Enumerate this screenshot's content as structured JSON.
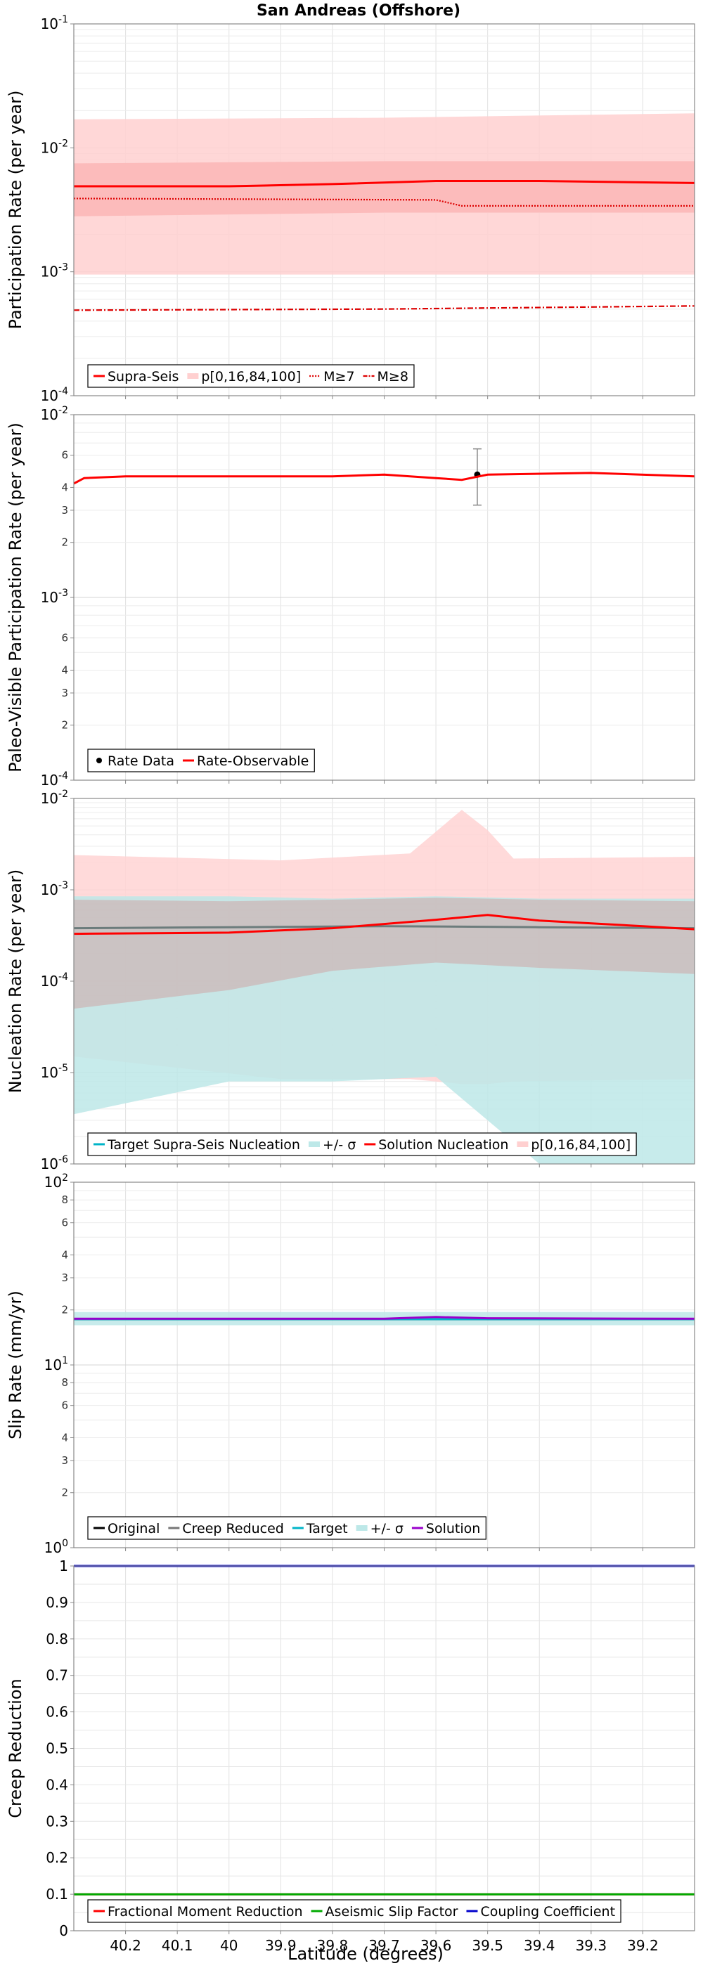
{
  "figure": {
    "title": "San Andreas (Offshore)",
    "xlabel": "Latitude (degrees)"
  },
  "chart_data": [
    {
      "id": "participation",
      "type": "line",
      "ylabel": "Participation Rate (per year)",
      "yscale": "log",
      "xlim": [
        40.3,
        39.1
      ],
      "ylim": [
        0.0001,
        0.1
      ],
      "grid": true,
      "legend_position": "bottom-left",
      "series": [
        {
          "name": "p[0,16,84,100]",
          "kind": "band",
          "color": "#ffd0d0",
          "x": [
            40.3,
            39.7,
            39.1
          ],
          "low": [
            0.00095,
            0.00095,
            0.00095
          ],
          "high": [
            0.017,
            0.0175,
            0.019
          ]
        },
        {
          "kind": "band",
          "color": "#fcb6b6",
          "x": [
            40.3,
            39.7,
            39.1
          ],
          "low": [
            0.0028,
            0.003,
            0.003
          ],
          "high": [
            0.0075,
            0.0078,
            0.0078
          ]
        },
        {
          "name": "Supra-Seis",
          "kind": "line",
          "color": "#ff0000",
          "x": [
            40.3,
            40.0,
            39.8,
            39.6,
            39.4,
            39.1
          ],
          "y": [
            0.0049,
            0.0049,
            0.0051,
            0.0054,
            0.0054,
            0.0052
          ]
        },
        {
          "name": "M≥7",
          "kind": "line",
          "style": "dotted",
          "color": "#dd0000",
          "x": [
            40.3,
            39.6,
            39.55,
            39.1
          ],
          "y": [
            0.0039,
            0.0038,
            0.0034,
            0.0034
          ]
        },
        {
          "name": "M≥8",
          "kind": "line",
          "style": "dashdot",
          "color": "#dd0000",
          "x": [
            40.3,
            39.7,
            39.1
          ],
          "y": [
            0.00049,
            0.0005,
            0.00053
          ]
        }
      ]
    },
    {
      "id": "paleo",
      "type": "line",
      "ylabel": "Paleo-Visible Participation Rate (per year)",
      "yscale": "log",
      "xlim": [
        40.3,
        39.1
      ],
      "ylim": [
        0.0001,
        0.01
      ],
      "grid": true,
      "legend_position": "bottom-left",
      "series": [
        {
          "name": "Rate Data",
          "kind": "points",
          "color": "#000000",
          "x": [
            39.52
          ],
          "y": [
            0.0047
          ],
          "low": [
            0.0032
          ],
          "high": [
            0.0065
          ]
        },
        {
          "name": "Rate-Observable",
          "kind": "line",
          "color": "#ff0000",
          "x": [
            40.3,
            40.28,
            40.2,
            40.0,
            39.8,
            39.7,
            39.6,
            39.55,
            39.5,
            39.3,
            39.1
          ],
          "y": [
            0.0042,
            0.0045,
            0.0046,
            0.0046,
            0.0046,
            0.0047,
            0.0045,
            0.0044,
            0.0047,
            0.0048,
            0.0046
          ]
        }
      ]
    },
    {
      "id": "nucleation",
      "type": "line",
      "ylabel": "Nucleation Rate (per year)",
      "yscale": "log",
      "xlim": [
        40.3,
        39.1
      ],
      "ylim": [
        1e-06,
        0.01
      ],
      "grid": true,
      "legend_position": "bottom-left",
      "series": [
        {
          "name": "p[0,16,84,100]",
          "kind": "band",
          "color": "#ffd3d3",
          "x": [
            40.3,
            39.9,
            39.65,
            39.55,
            39.5,
            39.45,
            39.1
          ],
          "low": [
            1.5e-05,
            8.5e-06,
            8.5e-06,
            7.5e-06,
            7.5e-06,
            8e-06,
            8.5e-06
          ],
          "high": [
            0.0024,
            0.0021,
            0.0025,
            0.0075,
            0.0045,
            0.0022,
            0.0023
          ]
        },
        {
          "name": "+/- σ",
          "kind": "band",
          "color": "#bde8e8",
          "x": [
            40.3,
            40.0,
            39.8,
            39.6,
            39.4,
            39.1
          ],
          "low": [
            3.5e-06,
            8e-06,
            8e-06,
            9e-06,
            1e-06,
            1e-06
          ],
          "high": [
            0.00085,
            0.00085,
            0.0008,
            0.00085,
            0.0008,
            0.0008
          ]
        },
        {
          "kind": "band",
          "color": "#cbbcbc",
          "x": [
            40.3,
            40.0,
            39.8,
            39.6,
            39.4,
            39.1
          ],
          "low": [
            5e-05,
            8e-05,
            0.00013,
            0.00016,
            0.00014,
            0.00012
          ],
          "high": [
            0.00078,
            0.00075,
            0.00078,
            0.00082,
            0.00078,
            0.00075
          ]
        },
        {
          "name": "Target Supra-Seis Nucleation",
          "kind": "line",
          "color": "#6c7c7c",
          "x": [
            40.3,
            40.0,
            39.7,
            39.4,
            39.1
          ],
          "y": [
            0.00038,
            0.00039,
            0.0004,
            0.00039,
            0.00038
          ]
        },
        {
          "name": "Solution Nucleation",
          "kind": "line",
          "color": "#ff0000",
          "x": [
            40.3,
            40.0,
            39.8,
            39.6,
            39.5,
            39.4,
            39.2,
            39.1
          ],
          "y": [
            0.00033,
            0.00034,
            0.00038,
            0.00047,
            0.00053,
            0.00046,
            0.0004,
            0.00037
          ]
        }
      ]
    },
    {
      "id": "slip",
      "type": "line",
      "ylabel": "Slip Rate (mm/yr)",
      "yscale": "log",
      "xlim": [
        40.3,
        39.1
      ],
      "ylim": [
        1,
        100
      ],
      "grid": true,
      "legend_position": "bottom-left",
      "series": [
        {
          "name": "+/- σ",
          "kind": "band",
          "color": "#bde8e8",
          "x": [
            40.3,
            39.1
          ],
          "low": [
            16.5,
            16.5
          ],
          "high": [
            19.5,
            19.5
          ]
        },
        {
          "name": "Original",
          "kind": "line",
          "color": "#000000",
          "x": [
            40.3,
            39.1
          ],
          "y": [
            17.8,
            17.8
          ]
        },
        {
          "name": "Creep Reduced",
          "kind": "line",
          "color": "#777777",
          "x": [
            40.3,
            39.1
          ],
          "y": [
            17.8,
            17.8
          ]
        },
        {
          "name": "Target",
          "kind": "line",
          "color": "#00b4c8",
          "x": [
            40.3,
            39.1
          ],
          "y": [
            17.8,
            17.8
          ]
        },
        {
          "name": "Solution",
          "kind": "line",
          "color": "#9900cc",
          "x": [
            40.3,
            39.7,
            39.6,
            39.5,
            39.1
          ],
          "y": [
            17.9,
            17.9,
            18.3,
            18.0,
            17.9
          ]
        }
      ]
    },
    {
      "id": "creep",
      "type": "line",
      "ylabel": "Creep Reduction",
      "yscale": "linear",
      "xlim": [
        40.3,
        39.1
      ],
      "ylim": [
        0,
        1
      ],
      "grid": true,
      "legend_position": "bottom-left",
      "series": [
        {
          "name": "Fractional Moment Reduction",
          "kind": "line",
          "color": "#ff0000",
          "x": [
            40.3,
            39.1
          ],
          "y": [
            0.1,
            0.1
          ]
        },
        {
          "name": "Aseismic Slip Factor",
          "kind": "line",
          "color": "#00aa00",
          "x": [
            40.3,
            39.1
          ],
          "y": [
            0.1,
            0.1
          ]
        },
        {
          "name": "Coupling Coefficient",
          "kind": "line",
          "color": "#0000cc",
          "x": [
            40.3,
            39.1
          ],
          "y": [
            1.0,
            1.0
          ]
        }
      ]
    }
  ],
  "xticks": [
    "40.2",
    "40.1",
    "40",
    "39.9",
    "39.8",
    "39.7",
    "39.6",
    "39.5",
    "39.4",
    "39.3",
    "39.2"
  ],
  "xtick_values": [
    40.2,
    40.1,
    40.0,
    39.9,
    39.8,
    39.7,
    39.6,
    39.5,
    39.4,
    39.3,
    39.2
  ],
  "yticks": {
    "participation": {
      "values": [
        0.1,
        0.01,
        0.001,
        0.0001
      ],
      "labels": [
        [
          "10",
          "-1"
        ],
        [
          "10",
          "-2"
        ],
        [
          "10",
          "-3"
        ],
        [
          "10",
          "-4"
        ]
      ]
    },
    "paleo": {
      "values": [
        0.01,
        0.006,
        0.004,
        0.003,
        0.002,
        0.001,
        0.0006,
        0.0004,
        0.0003,
        0.0002,
        0.0001
      ],
      "labels": [
        [
          "10",
          "-2"
        ],
        [
          "6",
          ""
        ],
        [
          "4",
          ""
        ],
        [
          "3",
          ""
        ],
        [
          "2",
          ""
        ],
        [
          "10",
          "-3"
        ],
        [
          "6",
          ""
        ],
        [
          "4",
          ""
        ],
        [
          "3",
          ""
        ],
        [
          "2",
          ""
        ],
        [
          "10",
          "-4"
        ]
      ]
    },
    "nucleation": {
      "values": [
        0.01,
        0.001,
        0.0001,
        1e-05,
        1e-06
      ],
      "labels": [
        [
          "10",
          "-2"
        ],
        [
          "10",
          "-3"
        ],
        [
          "10",
          "-4"
        ],
        [
          "10",
          "-5"
        ],
        [
          "10",
          "-6"
        ]
      ]
    },
    "slip": {
      "values": [
        100,
        80,
        60,
        40,
        30,
        20,
        10,
        8,
        6,
        4,
        3,
        2,
        1
      ],
      "labels": [
        [
          "10",
          "2"
        ],
        [
          "8",
          ""
        ],
        [
          "6",
          ""
        ],
        [
          "4",
          ""
        ],
        [
          "3",
          ""
        ],
        [
          "2",
          ""
        ],
        [
          "10",
          "1"
        ],
        [
          "8",
          ""
        ],
        [
          "6",
          ""
        ],
        [
          "4",
          ""
        ],
        [
          "3",
          ""
        ],
        [
          "2",
          ""
        ],
        [
          "10",
          "0"
        ]
      ]
    },
    "creep": {
      "values": [
        0,
        0.1,
        0.2,
        0.3,
        0.4,
        0.5,
        0.6,
        0.7,
        0.8,
        0.9,
        1
      ],
      "labels": [
        [
          "0",
          ""
        ],
        [
          "0.1",
          ""
        ],
        [
          "0.2",
          ""
        ],
        [
          "0.3",
          ""
        ],
        [
          "0.4",
          ""
        ],
        [
          "0.5",
          ""
        ],
        [
          "0.6",
          ""
        ],
        [
          "0.7",
          ""
        ],
        [
          "0.8",
          ""
        ],
        [
          "0.9",
          ""
        ],
        [
          "1",
          ""
        ]
      ]
    }
  },
  "legends": {
    "participation": [
      {
        "label": "Supra-Seis",
        "sym": "line",
        "color": "#ff0000"
      },
      {
        "label": "p[0,16,84,100]",
        "sym": "band",
        "color": "#ffd0d0"
      },
      {
        "label": "M≥7",
        "sym": "dotted",
        "color": "#dd0000"
      },
      {
        "label": "M≥8",
        "sym": "dashdot",
        "color": "#dd0000"
      }
    ],
    "paleo": [
      {
        "label": "Rate Data",
        "sym": "dot",
        "color": "#000000"
      },
      {
        "label": "Rate-Observable",
        "sym": "line",
        "color": "#ff0000"
      }
    ],
    "nucleation": [
      {
        "label": "Target Supra-Seis Nucleation",
        "sym": "line",
        "color": "#00b4c8"
      },
      {
        "label": "+/- σ",
        "sym": "band",
        "color": "#bde8e8"
      },
      {
        "label": "Solution Nucleation",
        "sym": "line",
        "color": "#ff0000"
      },
      {
        "label": "p[0,16,84,100]",
        "sym": "band",
        "color": "#ffd0d0"
      }
    ],
    "slip": [
      {
        "label": "Original",
        "sym": "line",
        "color": "#000000"
      },
      {
        "label": "Creep Reduced",
        "sym": "line",
        "color": "#777777"
      },
      {
        "label": "Target",
        "sym": "line",
        "color": "#00b4c8"
      },
      {
        "label": "+/- σ",
        "sym": "band",
        "color": "#bde8e8"
      },
      {
        "label": "Solution",
        "sym": "line",
        "color": "#9900cc"
      }
    ],
    "creep": [
      {
        "label": "Fractional Moment Reduction",
        "sym": "line",
        "color": "#ff0000"
      },
      {
        "label": "Aseismic Slip Factor",
        "sym": "line",
        "color": "#00aa00"
      },
      {
        "label": "Coupling Coefficient",
        "sym": "line",
        "color": "#0000cc"
      }
    ]
  }
}
